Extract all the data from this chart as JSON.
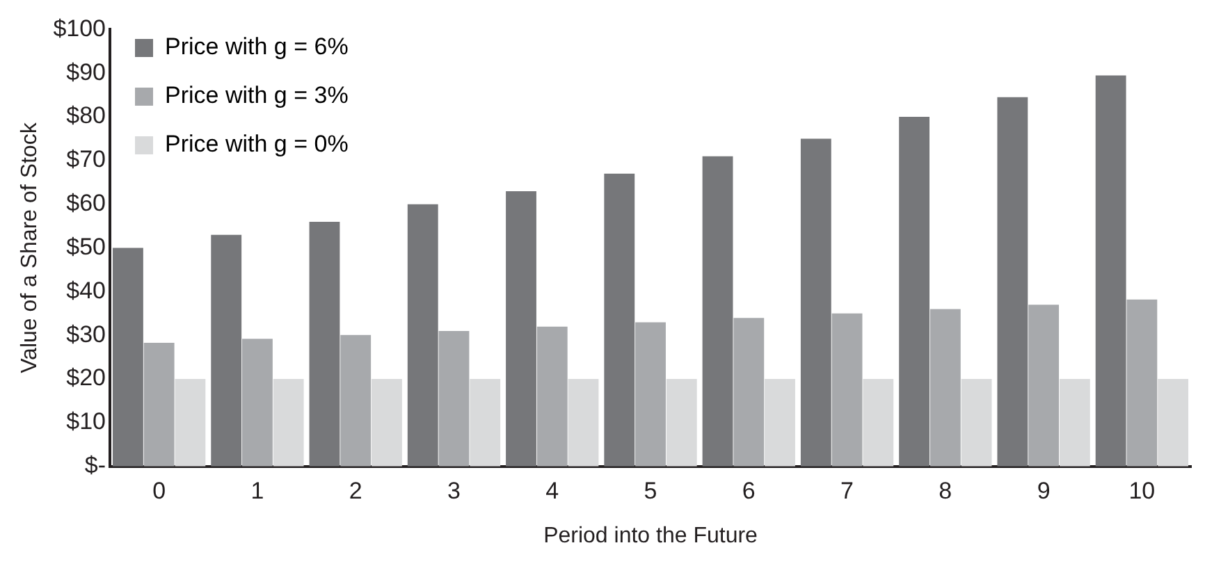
{
  "chart_data": {
    "type": "bar",
    "xlabel": "Period into the Future",
    "ylabel": "Value of a Share of Stock",
    "categories": [
      "0",
      "1",
      "2",
      "3",
      "4",
      "5",
      "6",
      "7",
      "8",
      "9",
      "10"
    ],
    "series": [
      {
        "name": "Price with g = 6%",
        "color": "#76777a",
        "values": [
          50,
          53,
          56,
          60,
          63,
          67,
          71,
          75,
          80,
          84.5,
          89.5
        ]
      },
      {
        "name": "Price with g = 3%",
        "color": "#a7a9ac",
        "values": [
          28.3,
          29.2,
          30.1,
          31,
          32,
          33,
          34,
          35,
          36,
          37,
          38.2
        ]
      },
      {
        "name": "Price with g = 0%",
        "color": "#d9dadb",
        "values": [
          20,
          20,
          20,
          20,
          20,
          20,
          20,
          20,
          20,
          20,
          20
        ]
      }
    ],
    "ylim": [
      0,
      100
    ],
    "yticks": [
      {
        "value": 0,
        "label": "$-"
      },
      {
        "value": 10,
        "label": "$10"
      },
      {
        "value": 20,
        "label": "$20"
      },
      {
        "value": 30,
        "label": "$30"
      },
      {
        "value": 40,
        "label": "$40"
      },
      {
        "value": 50,
        "label": "$50"
      },
      {
        "value": 60,
        "label": "$60"
      },
      {
        "value": 70,
        "label": "$70"
      },
      {
        "value": 80,
        "label": "$80"
      },
      {
        "value": 90,
        "label": "$90"
      },
      {
        "value": 100,
        "label": "$100"
      }
    ],
    "grid": false,
    "legend": "top left"
  }
}
